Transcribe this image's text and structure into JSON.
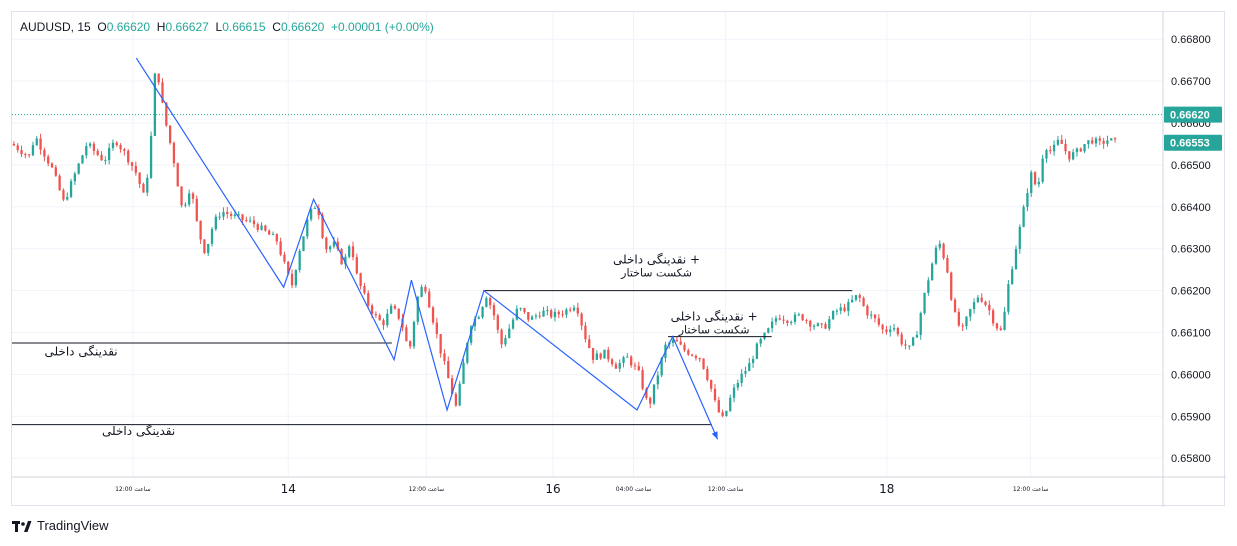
{
  "header": {
    "symbol": "AUDUSD",
    "timeframe": "15",
    "open_label": "O",
    "open": "0.66620",
    "high_label": "H",
    "high": "0.66627",
    "low_label": "L",
    "low": "0.66615",
    "close_label": "C",
    "close": "0.66620",
    "change": "+0.00001 (+0.00%)"
  },
  "brand": {
    "name": "TradingView"
  },
  "colors": {
    "up": "#26a69a",
    "down": "#ef5350",
    "zigzag": "#2962ff",
    "level_line": "#131722",
    "price_badge": "#26a69a",
    "grid": "#f0f3fa",
    "axis_text": "#131722"
  },
  "chart_data": {
    "type": "candlestick",
    "symbol": "AUDUSD",
    "ylim": [
      0.65755,
      0.66865
    ],
    "y_ticks": [
      "0.66800",
      "0.66700",
      "0.66600",
      "0.66500",
      "0.66400",
      "0.66300",
      "0.66200",
      "0.66100",
      "0.66000",
      "0.65900",
      "0.65800"
    ],
    "x_ticks": [
      {
        "label": "12:00 ساعت",
        "major": false,
        "xf": 0.105
      },
      {
        "label": "14",
        "major": true,
        "xf": 0.24
      },
      {
        "label": "12:00 ساعت",
        "major": false,
        "xf": 0.36
      },
      {
        "label": "16",
        "major": true,
        "xf": 0.47
      },
      {
        "label": "04:00 ساعت",
        "major": false,
        "xf": 0.54
      },
      {
        "label": "12:00 ساعت",
        "major": false,
        "xf": 0.62
      },
      {
        "label": "18",
        "major": true,
        "xf": 0.76
      },
      {
        "label": "12:00 ساعت",
        "major": false,
        "xf": 0.885
      }
    ],
    "current_price": {
      "value": 0.6662,
      "label": "0.66620"
    },
    "second_price": {
      "value": 0.66553,
      "label": "0.66553"
    },
    "close_path": [
      [
        0.0,
        0.6655
      ],
      [
        0.015,
        0.6652
      ],
      [
        0.02,
        0.6657
      ],
      [
        0.035,
        0.6649
      ],
      [
        0.045,
        0.6641
      ],
      [
        0.055,
        0.6648
      ],
      [
        0.065,
        0.6655
      ],
      [
        0.08,
        0.6651
      ],
      [
        0.09,
        0.6656
      ],
      [
        0.1,
        0.6652
      ],
      [
        0.108,
        0.6648
      ],
      [
        0.115,
        0.6642
      ],
      [
        0.12,
        0.6653
      ],
      [
        0.125,
        0.6675
      ],
      [
        0.132,
        0.6662
      ],
      [
        0.14,
        0.6652
      ],
      [
        0.148,
        0.6639
      ],
      [
        0.155,
        0.6645
      ],
      [
        0.162,
        0.6634
      ],
      [
        0.168,
        0.6629
      ],
      [
        0.175,
        0.6636
      ],
      [
        0.182,
        0.6639
      ],
      [
        0.19,
        0.6638
      ],
      [
        0.2,
        0.6637
      ],
      [
        0.21,
        0.6636
      ],
      [
        0.22,
        0.6634
      ],
      [
        0.23,
        0.6632
      ],
      [
        0.238,
        0.6625
      ],
      [
        0.243,
        0.6621
      ],
      [
        0.25,
        0.663
      ],
      [
        0.258,
        0.6638
      ],
      [
        0.265,
        0.6641
      ],
      [
        0.272,
        0.663
      ],
      [
        0.28,
        0.6631
      ],
      [
        0.288,
        0.6626
      ],
      [
        0.294,
        0.6632
      ],
      [
        0.3,
        0.6623
      ],
      [
        0.307,
        0.6618
      ],
      [
        0.315,
        0.6614
      ],
      [
        0.322,
        0.6612
      ],
      [
        0.33,
        0.6616
      ],
      [
        0.338,
        0.6613
      ],
      [
        0.345,
        0.6605
      ],
      [
        0.352,
        0.6618
      ],
      [
        0.358,
        0.6622
      ],
      [
        0.365,
        0.6614
      ],
      [
        0.372,
        0.6606
      ],
      [
        0.38,
        0.6598
      ],
      [
        0.386,
        0.6592
      ],
      [
        0.392,
        0.6602
      ],
      [
        0.398,
        0.6612
      ],
      [
        0.405,
        0.6614
      ],
      [
        0.412,
        0.6619
      ],
      [
        0.418,
        0.6615
      ],
      [
        0.425,
        0.6607
      ],
      [
        0.432,
        0.6611
      ],
      [
        0.44,
        0.6616
      ],
      [
        0.45,
        0.6613
      ],
      [
        0.46,
        0.6615
      ],
      [
        0.47,
        0.6614
      ],
      [
        0.48,
        0.6615
      ],
      [
        0.49,
        0.6617
      ],
      [
        0.498,
        0.6609
      ],
      [
        0.505,
        0.6604
      ],
      [
        0.515,
        0.6605
      ],
      [
        0.525,
        0.6602
      ],
      [
        0.535,
        0.6604
      ],
      [
        0.545,
        0.66
      ],
      [
        0.553,
        0.6592
      ],
      [
        0.56,
        0.6599
      ],
      [
        0.568,
        0.6607
      ],
      [
        0.576,
        0.6608
      ],
      [
        0.583,
        0.6606
      ],
      [
        0.59,
        0.6605
      ],
      [
        0.598,
        0.6604
      ],
      [
        0.606,
        0.6598
      ],
      [
        0.612,
        0.6592
      ],
      [
        0.618,
        0.6589
      ],
      [
        0.625,
        0.6595
      ],
      [
        0.632,
        0.6599
      ],
      [
        0.64,
        0.6602
      ],
      [
        0.648,
        0.6607
      ],
      [
        0.656,
        0.661
      ],
      [
        0.665,
        0.6614
      ],
      [
        0.675,
        0.6613
      ],
      [
        0.685,
        0.6614
      ],
      [
        0.695,
        0.6612
      ],
      [
        0.705,
        0.6611
      ],
      [
        0.715,
        0.6615
      ],
      [
        0.725,
        0.6616
      ],
      [
        0.735,
        0.6619
      ],
      [
        0.742,
        0.6615
      ],
      [
        0.75,
        0.6613
      ],
      [
        0.758,
        0.661
      ],
      [
        0.765,
        0.6612
      ],
      [
        0.772,
        0.6608
      ],
      [
        0.78,
        0.6606
      ],
      [
        0.786,
        0.661
      ],
      [
        0.792,
        0.6618
      ],
      [
        0.798,
        0.6625
      ],
      [
        0.805,
        0.6632
      ],
      [
        0.812,
        0.6626
      ],
      [
        0.818,
        0.6615
      ],
      [
        0.825,
        0.661
      ],
      [
        0.832,
        0.6615
      ],
      [
        0.84,
        0.6619
      ],
      [
        0.848,
        0.6616
      ],
      [
        0.854,
        0.6612
      ],
      [
        0.86,
        0.661
      ],
      [
        0.866,
        0.6622
      ],
      [
        0.872,
        0.663
      ],
      [
        0.878,
        0.6638
      ],
      [
        0.885,
        0.6648
      ],
      [
        0.891,
        0.6644
      ],
      [
        0.897,
        0.6655
      ],
      [
        0.903,
        0.6653
      ],
      [
        0.91,
        0.6656
      ],
      [
        0.918,
        0.6652
      ],
      [
        0.925,
        0.6653
      ],
      [
        0.932,
        0.6655
      ],
      [
        0.938,
        0.6656
      ],
      [
        0.945,
        0.6655
      ],
      [
        0.952,
        0.6656
      ],
      [
        0.96,
        0.66553
      ]
    ],
    "zigzag": [
      [
        0.108,
        0.66755
      ],
      [
        0.236,
        0.66208
      ],
      [
        0.262,
        0.66418
      ],
      [
        0.332,
        0.66035
      ],
      [
        0.347,
        0.66225
      ],
      [
        0.378,
        0.65915
      ],
      [
        0.41,
        0.662
      ],
      [
        0.543,
        0.65915
      ],
      [
        0.574,
        0.6609
      ],
      [
        0.613,
        0.65845
      ]
    ],
    "level_lines": [
      {
        "from": 0.0,
        "to": 0.33,
        "value": 0.66075
      },
      {
        "from": 0.0,
        "to": 0.608,
        "value": 0.6588
      },
      {
        "from": 0.41,
        "to": 0.73,
        "value": 0.662
      },
      {
        "from": 0.57,
        "to": 0.66,
        "value": 0.6609
      }
    ],
    "annotations": [
      {
        "line1": "نقدینگی داخلی",
        "line2": "",
        "value": 0.66045,
        "xf": 0.06
      },
      {
        "line1": "نقدینگی داخلی",
        "line2": "",
        "value": 0.65855,
        "xf": 0.11
      },
      {
        "line1": "نقدینگی داخلی +",
        "line2": "شکست ساختار",
        "value": 0.66265,
        "xf": 0.56
      },
      {
        "line1": "نقدینگی داخلی +",
        "line2": "شکست ساختار",
        "value": 0.66128,
        "xf": 0.61
      }
    ]
  }
}
